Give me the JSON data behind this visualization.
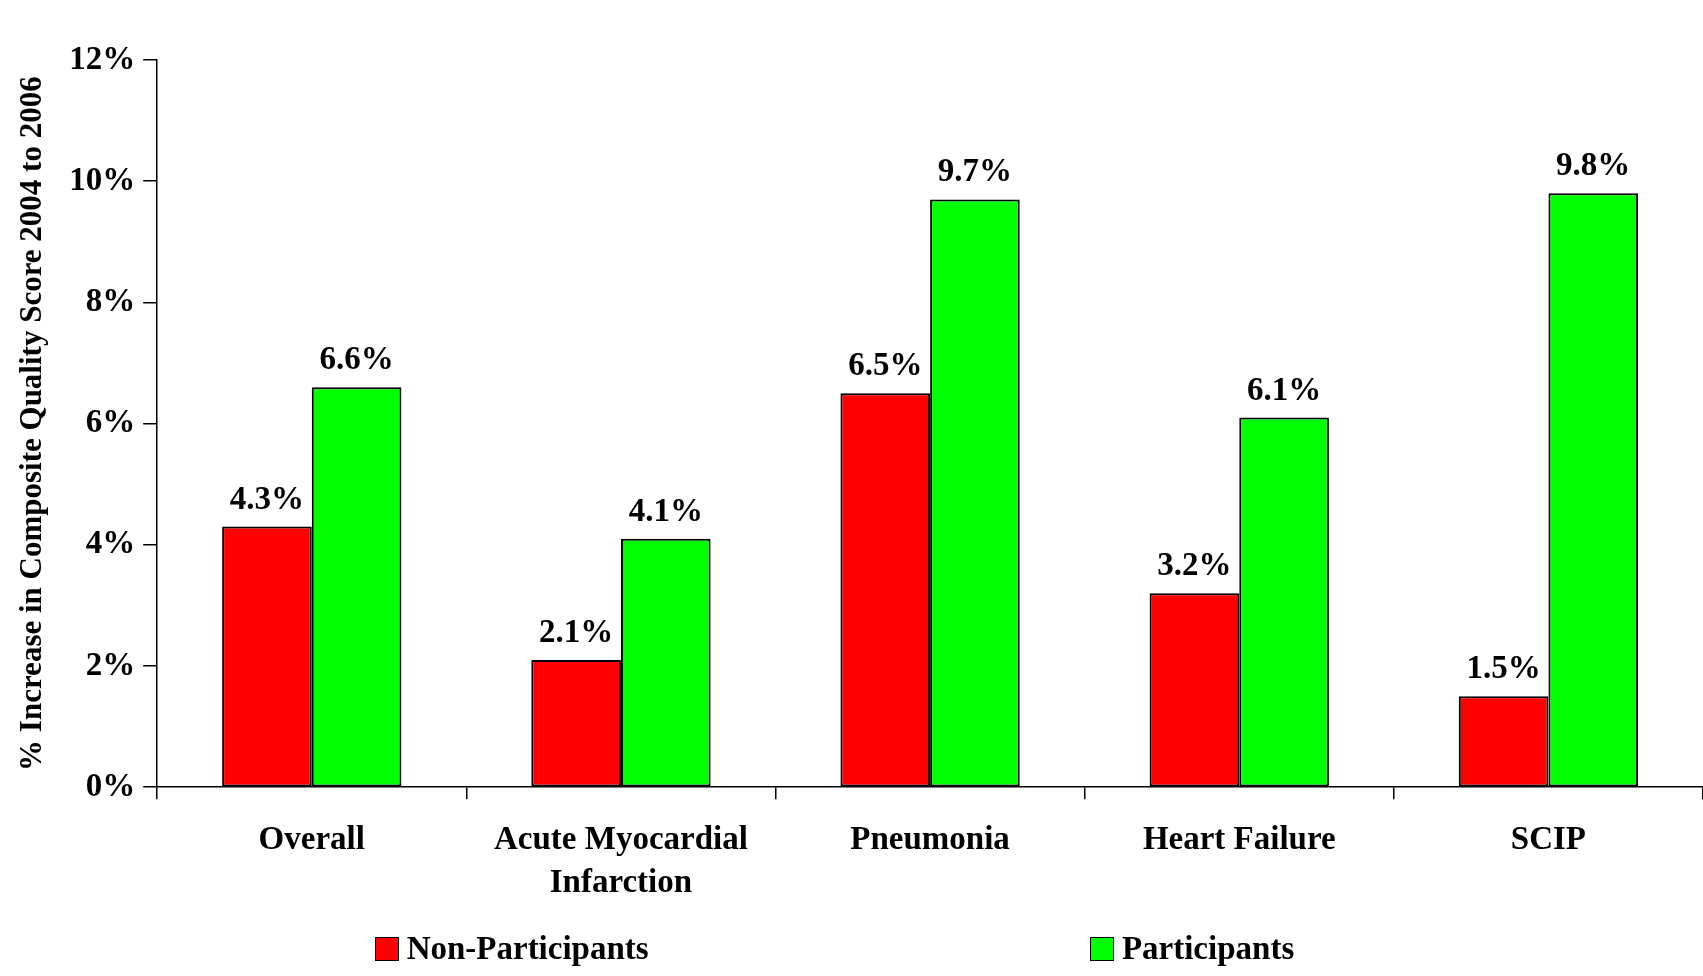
{
  "chart_data": {
    "type": "bar",
    "ylabel": "% Increase in Composite Quality Score 2004 to 2006",
    "categories": [
      "Overall",
      "Acute Myocardial Infarction",
      "Pneumonia",
      "Heart Failure",
      "SCIP"
    ],
    "series": [
      {
        "name": "Non-Participants",
        "color": "#ff0000",
        "values": [
          4.3,
          2.1,
          6.5,
          3.2,
          1.5
        ],
        "value_labels": [
          "4.3%",
          "2.1%",
          "6.5%",
          "3.2%",
          "1.5%"
        ]
      },
      {
        "name": "Participants",
        "color": "#00ff00",
        "values": [
          6.6,
          4.1,
          9.7,
          6.1,
          9.8
        ],
        "value_labels": [
          "6.6%",
          "4.1%",
          "9.7%",
          "6.1%",
          "9.8%"
        ]
      }
    ],
    "ylim": [
      0,
      12
    ],
    "yticks": [
      {
        "value": 0,
        "label": "0%"
      },
      {
        "value": 2,
        "label": "2%"
      },
      {
        "value": 4,
        "label": "4%"
      },
      {
        "value": 6,
        "label": "6%"
      },
      {
        "value": 8,
        "label": "8%"
      },
      {
        "value": 10,
        "label": "10%"
      },
      {
        "value": 12,
        "label": "12%"
      }
    ],
    "grid": false,
    "legend": "bottom"
  }
}
